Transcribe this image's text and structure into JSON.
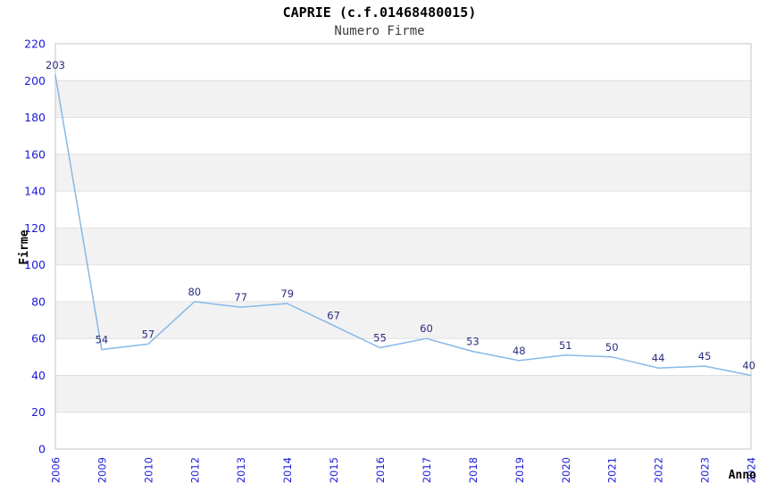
{
  "header": {
    "title": "CAPRIE (c.f.01468480015)",
    "subtitle": "Numero Firme"
  },
  "chart_data": {
    "type": "line",
    "title": "CAPRIE (c.f.01468480015)",
    "subtitle": "Numero Firme",
    "xlabel": "Anno",
    "ylabel": "Firme",
    "categories": [
      "2006",
      "2009",
      "2010",
      "2012",
      "2013",
      "2014",
      "2015",
      "2016",
      "2017",
      "2018",
      "2019",
      "2020",
      "2021",
      "2022",
      "2023",
      "2024"
    ],
    "values": [
      203,
      54,
      57,
      80,
      77,
      79,
      67,
      55,
      60,
      53,
      48,
      51,
      50,
      44,
      45,
      40
    ],
    "ylim": [
      0,
      220
    ],
    "ytick_step": 20,
    "grid": "horizontal-bands",
    "legend": "none",
    "markers": "none",
    "data_labels": "above-points",
    "x_tick_rotation": -90,
    "colors": {
      "line": "#86b9e8",
      "data_label": "#2b2b80",
      "tick_label": "#1a1ad9",
      "axis_title": "#000000",
      "band": "#f2f2f2",
      "gridline": "#e0e0e0",
      "plot_border": "#cfcfcf",
      "background": "#ffffff",
      "title": "#000000",
      "subtitle": "#3c3c3c"
    }
  }
}
